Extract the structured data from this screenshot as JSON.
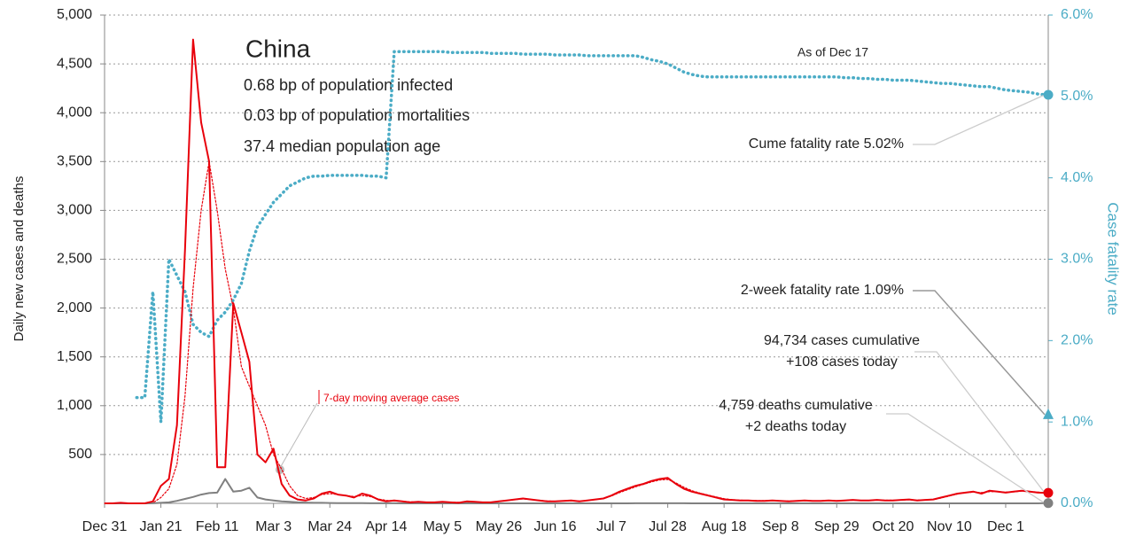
{
  "chart_data": {
    "type": "line",
    "title": "China",
    "subtitle_lines": [
      "0.68 bp of population infected",
      "0.03 bp of population mortalities",
      "37.4 median population age"
    ],
    "as_of": "As of Dec 17",
    "y_label": "Daily new cases and deaths",
    "y2_label": "Case fatality rate",
    "ma_label": "7-day moving average cases",
    "categories": [
      "Dec 31",
      null,
      null,
      null,
      null,
      null,
      null,
      "Jan 21",
      null,
      null,
      null,
      null,
      null,
      null,
      "Feb 11",
      null,
      null,
      null,
      null,
      null,
      null,
      "Mar 3",
      null,
      null,
      null,
      null,
      null,
      null,
      "Mar 24",
      null,
      null,
      null,
      null,
      null,
      null,
      "Apr 14",
      null,
      null,
      null,
      null,
      null,
      null,
      "May 5",
      null,
      null,
      null,
      null,
      null,
      null,
      "May 26",
      null,
      null,
      null,
      null,
      null,
      null,
      "Jun 16",
      null,
      null,
      null,
      null,
      null,
      null,
      "Jul 7",
      null,
      null,
      null,
      null,
      null,
      null,
      "Jul 28",
      null,
      null,
      null,
      null,
      null,
      null,
      "Aug 18",
      null,
      null,
      null,
      null,
      null,
      null,
      "Sep 8",
      null,
      null,
      null,
      null,
      null,
      null,
      "Sep 29",
      null,
      null,
      null,
      null,
      null,
      null,
      "Oct 20",
      null,
      null,
      null,
      null,
      null,
      null,
      "Nov 10",
      null,
      null,
      null,
      null,
      null,
      null,
      "Dec 1",
      null,
      null,
      null,
      null,
      null
    ],
    "series": [
      {
        "name": "Cases",
        "color": "#e8000b",
        "style": "solid",
        "width": 2,
        "values": [
          0,
          0,
          5,
          0,
          0,
          0,
          20,
          180,
          250,
          800,
          2600,
          4750,
          3900,
          3500,
          370,
          370,
          2050,
          1750,
          1450,
          500,
          420,
          560,
          200,
          80,
          40,
          30,
          50,
          100,
          120,
          90,
          80,
          60,
          100,
          80,
          40,
          20,
          30,
          20,
          10,
          15,
          10,
          10,
          15,
          10,
          5,
          20,
          15,
          10,
          10,
          20,
          30,
          40,
          50,
          40,
          30,
          20,
          20,
          25,
          30,
          20,
          30,
          40,
          50,
          80,
          120,
          150,
          180,
          200,
          230,
          250,
          260,
          200,
          150,
          120,
          100,
          80,
          60,
          40,
          35,
          30,
          30,
          25,
          25,
          30,
          25,
          20,
          25,
          30,
          25,
          25,
          30,
          25,
          30,
          35,
          30,
          30,
          35,
          30,
          30,
          35,
          40,
          30,
          35,
          40,
          60,
          80,
          100,
          110,
          120,
          100,
          130,
          120,
          110,
          120,
          130,
          120,
          110,
          108
        ]
      },
      {
        "name": "7-day moving average cases",
        "color": "#e8000b",
        "style": "dotted",
        "width": 1.2,
        "values": [
          0,
          0,
          2,
          2,
          0,
          0,
          5,
          60,
          150,
          400,
          1100,
          2200,
          3000,
          3500,
          3000,
          2400,
          2000,
          1400,
          1200,
          1000,
          800,
          500,
          350,
          180,
          80,
          50,
          60,
          90,
          100,
          90,
          80,
          70,
          80,
          70,
          45,
          30,
          25,
          20,
          15,
          13,
          12,
          12,
          12,
          10,
          10,
          14,
          14,
          12,
          12,
          18,
          28,
          38,
          45,
          40,
          32,
          24,
          22,
          24,
          26,
          24,
          30,
          38,
          50,
          75,
          110,
          140,
          170,
          195,
          220,
          240,
          245,
          210,
          165,
          130,
          105,
          85,
          65,
          48,
          38,
          33,
          30,
          28,
          27,
          28,
          26,
          24,
          25,
          27,
          26,
          26,
          28,
          27,
          29,
          32,
          31,
          31,
          33,
          32,
          32,
          34,
          37,
          34,
          35,
          38,
          55,
          75,
          95,
          108,
          115,
          110,
          120,
          120,
          115,
          118,
          125,
          122,
          115,
          110
        ]
      },
      {
        "name": "Deaths",
        "color": "#808080",
        "style": "solid",
        "width": 2,
        "values": [
          0,
          0,
          0,
          0,
          0,
          0,
          1,
          5,
          10,
          25,
          45,
          65,
          90,
          105,
          110,
          250,
          120,
          130,
          160,
          60,
          40,
          30,
          20,
          15,
          10,
          8,
          5,
          5,
          4,
          3,
          2,
          2,
          2,
          1,
          1,
          1,
          1,
          0,
          0,
          0,
          0,
          0,
          0,
          0,
          0,
          0,
          0,
          0,
          0,
          0,
          0,
          0,
          0,
          0,
          0,
          0,
          0,
          0,
          0,
          0,
          0,
          0,
          0,
          0,
          0,
          0,
          1,
          1,
          1,
          1,
          1,
          1,
          1,
          0,
          0,
          0,
          0,
          0,
          0,
          0,
          0,
          0,
          0,
          0,
          0,
          0,
          0,
          0,
          0,
          0,
          0,
          0,
          0,
          0,
          0,
          0,
          0,
          0,
          0,
          0,
          0,
          0,
          0,
          0,
          0,
          0,
          0,
          0,
          0,
          0,
          0,
          0,
          0,
          0,
          0,
          0,
          0,
          2
        ]
      },
      {
        "name": "Case fatality rate",
        "color": "#4bacc6",
        "style": "dotted",
        "width": 3.5,
        "axis": "y2",
        "values": [
          null,
          null,
          null,
          null,
          1.3,
          1.3,
          2.6,
          1.0,
          3.0,
          2.8,
          2.6,
          2.2,
          2.1,
          2.05,
          2.25,
          2.35,
          2.5,
          2.7,
          3.1,
          3.4,
          3.55,
          3.7,
          3.8,
          3.9,
          3.95,
          4.0,
          4.02,
          4.02,
          4.03,
          4.03,
          4.03,
          4.03,
          4.03,
          4.02,
          4.02,
          4.0,
          5.55,
          5.55,
          5.55,
          5.55,
          5.55,
          5.55,
          5.55,
          5.54,
          5.54,
          5.54,
          5.54,
          5.54,
          5.53,
          5.53,
          5.53,
          5.53,
          5.52,
          5.52,
          5.52,
          5.52,
          5.51,
          5.51,
          5.51,
          5.51,
          5.5,
          5.5,
          5.5,
          5.5,
          5.5,
          5.5,
          5.5,
          5.48,
          5.45,
          5.43,
          5.4,
          5.35,
          5.3,
          5.27,
          5.25,
          5.24,
          5.24,
          5.24,
          5.24,
          5.24,
          5.24,
          5.24,
          5.24,
          5.24,
          5.24,
          5.24,
          5.24,
          5.24,
          5.24,
          5.24,
          5.24,
          5.24,
          5.23,
          5.23,
          5.22,
          5.22,
          5.21,
          5.21,
          5.2,
          5.2,
          5.2,
          5.19,
          5.18,
          5.17,
          5.16,
          5.16,
          5.15,
          5.14,
          5.13,
          5.12,
          5.12,
          5.1,
          5.08,
          5.07,
          5.06,
          5.05,
          5.03,
          5.02
        ]
      }
    ],
    "ylim": [
      0,
      5000
    ],
    "yticks": [
      {
        "value": 500,
        "label": "500"
      },
      {
        "value": 1000,
        "label": "1,000"
      },
      {
        "value": 1500,
        "label": "1,500"
      },
      {
        "value": 2000,
        "label": "2,000"
      },
      {
        "value": 2500,
        "label": "2,500"
      },
      {
        "value": 3000,
        "label": "3,000"
      },
      {
        "value": 3500,
        "label": "3,500"
      },
      {
        "value": 4000,
        "label": "4,000"
      },
      {
        "value": 4500,
        "label": "4,500"
      },
      {
        "value": 5000,
        "label": "5,000"
      }
    ],
    "y2lim": [
      0,
      6
    ],
    "y2ticks": [
      {
        "value": 0,
        "label": "0.0%"
      },
      {
        "value": 1,
        "label": "1.0%"
      },
      {
        "value": 2,
        "label": "2.0%"
      },
      {
        "value": 3,
        "label": "3.0%"
      },
      {
        "value": 4,
        "label": "4.0%"
      },
      {
        "value": 5,
        "label": "5.0%"
      },
      {
        "value": 6,
        "label": "6.0%"
      }
    ],
    "grid": true,
    "end_markers": [
      {
        "lines": [
          "Cume fatality rate 5.02%"
        ],
        "value": 5.02,
        "axis": "y2",
        "shape": "circle",
        "color": "#4bacc6"
      },
      {
        "lines": [
          "2-week fatality rate 1.09%"
        ],
        "value": 1.09,
        "axis": "y2",
        "shape": "triangle",
        "color": "#4bacc6"
      },
      {
        "lines": [
          "94,734 cases cumulative",
          "+108 cases today"
        ],
        "value": 108,
        "axis": "y",
        "shape": "circle",
        "color": "#e8000b"
      },
      {
        "lines": [
          "4,759 deaths cumulative",
          "+2 deaths today"
        ],
        "value": 2,
        "axis": "y",
        "shape": "circle",
        "color": "#808080"
      }
    ]
  }
}
